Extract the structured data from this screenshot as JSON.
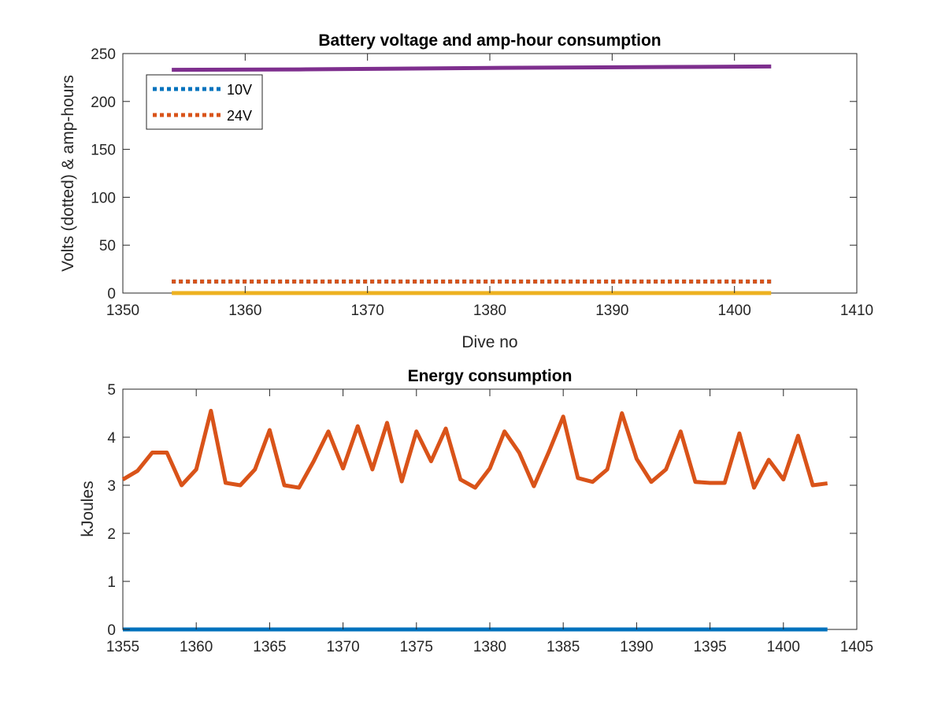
{
  "chart_data": [
    {
      "type": "line",
      "title": "Battery voltage and amp-hour consumption",
      "xlabel": "Dive no",
      "ylabel": "Volts (dotted) & amp-hours",
      "xlim": [
        1350,
        1410
      ],
      "ylim": [
        0,
        250
      ],
      "xticks": [
        "1350",
        "1360",
        "1370",
        "1380",
        "1390",
        "1400",
        "1410"
      ],
      "yticks": [
        "0",
        "50",
        "100",
        "150",
        "200",
        "250"
      ],
      "grid": false,
      "legend_position": "top-left",
      "series": [
        {
          "name": "10V",
          "style": "dotted",
          "color": "#0072BD",
          "x": [
            1354,
            1403
          ],
          "y": [
            12,
            12
          ]
        },
        {
          "name": "24V",
          "style": "dotted",
          "color": "#D95319",
          "x": [
            1354,
            1403
          ],
          "y": [
            12,
            12
          ]
        },
        {
          "style": "solid",
          "color": "#EDB120",
          "x": [
            1354,
            1403
          ],
          "y": [
            0,
            0
          ]
        },
        {
          "style": "solid",
          "color": "#7E2F8E",
          "x": [
            1354,
            1365,
            1380,
            1395,
            1403
          ],
          "y": [
            233,
            233.5,
            235,
            236,
            236.5
          ]
        }
      ]
    },
    {
      "type": "line",
      "title": "Energy consumption",
      "xlabel": "",
      "ylabel": "kJoules",
      "xlim": [
        1355,
        1405
      ],
      "ylim": [
        0,
        5
      ],
      "xticks": [
        "1355",
        "1360",
        "1365",
        "1370",
        "1375",
        "1380",
        "1385",
        "1390",
        "1395",
        "1400",
        "1405"
      ],
      "yticks": [
        "0",
        "1",
        "2",
        "3",
        "4",
        "5"
      ],
      "grid": false,
      "series": [
        {
          "style": "solid",
          "color": "#0072BD",
          "x": [
            1355,
            1403
          ],
          "y": [
            0,
            0
          ]
        },
        {
          "style": "solid",
          "color": "#D95319",
          "x": [
            1355,
            1356,
            1357,
            1358,
            1359,
            1360,
            1361,
            1362,
            1363,
            1364,
            1365,
            1366,
            1367,
            1368,
            1369,
            1370,
            1371,
            1372,
            1373,
            1374,
            1375,
            1376,
            1377,
            1378,
            1379,
            1380,
            1381,
            1382,
            1383,
            1384,
            1385,
            1386,
            1387,
            1388,
            1389,
            1390,
            1391,
            1392,
            1393,
            1394,
            1395,
            1396,
            1397,
            1398,
            1399,
            1400,
            1401,
            1402,
            1403
          ],
          "y": [
            3.12,
            3.3,
            3.68,
            3.68,
            3.0,
            3.33,
            4.55,
            3.05,
            3.0,
            3.33,
            4.15,
            3.0,
            2.95,
            3.5,
            4.12,
            3.35,
            4.23,
            3.33,
            4.3,
            3.08,
            4.12,
            3.5,
            4.18,
            3.12,
            2.95,
            3.35,
            4.12,
            3.68,
            2.98,
            3.68,
            4.43,
            3.15,
            3.07,
            3.33,
            4.5,
            3.55,
            3.07,
            3.33,
            4.12,
            3.07,
            3.05,
            3.05,
            4.08,
            2.95,
            3.53,
            3.12,
            4.03,
            3.0,
            3.04
          ]
        }
      ]
    }
  ]
}
